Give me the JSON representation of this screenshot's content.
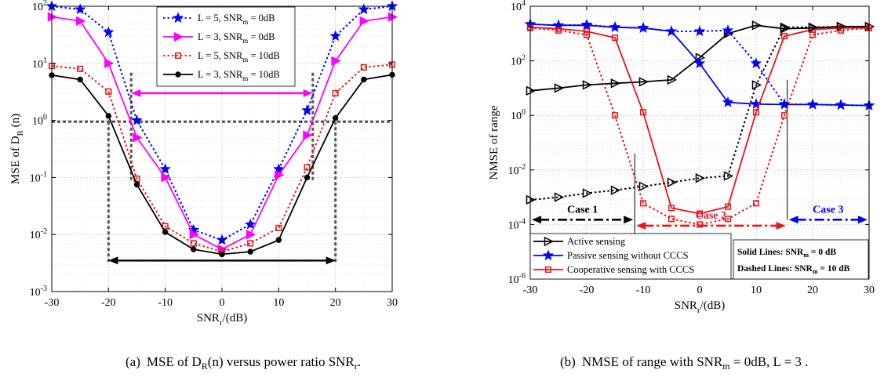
{
  "chart_data": [
    {
      "type": "line",
      "xlabel": "SNR",
      "xlabel_sub": "r",
      "xlabel_unit": "/(dB)",
      "ylabel": "MSE of D",
      "ylabel_sub": "R",
      "ylabel_tail": " (n)",
      "xlim": [
        -30,
        30
      ],
      "ylim": [
        0.001,
        100
      ],
      "yscale": "log",
      "grid": true,
      "legend_position": "top-center",
      "xticks": [
        -30,
        -20,
        -10,
        0,
        10,
        20,
        30
      ],
      "xtick_labels": [
        "-30",
        "-20",
        "-10",
        "0",
        "10",
        "20",
        "30"
      ],
      "yticks": [
        0.001,
        0.01,
        0.1,
        1,
        10,
        100
      ],
      "ytick_labels": [
        {
          "base": "10",
          "exp": "-3"
        },
        {
          "base": "10",
          "exp": "-2"
        },
        {
          "base": "10",
          "exp": "-1"
        },
        {
          "base": "10",
          "exp": "0"
        },
        {
          "base": "10",
          "exp": "1"
        },
        {
          "base": "10",
          "exp": "2"
        }
      ],
      "x": [
        -30,
        -25,
        -20,
        -15,
        -10,
        -5,
        0,
        5,
        10,
        15,
        20,
        25,
        30
      ],
      "series": [
        {
          "name": "L = 5, SNR",
          "name_sub": "m",
          "name_tail": " = 0dB",
          "color": "#0000ff",
          "dash": "dotted",
          "marker": "star",
          "values": [
            100,
            88,
            35,
            1.0,
            0.14,
            0.012,
            0.008,
            0.015,
            0.14,
            1.5,
            30,
            88,
            100
          ]
        },
        {
          "name": "L = 3, SNR",
          "name_sub": "m",
          "name_tail": " = 0dB",
          "color": "#ff00ff",
          "dash": "solid",
          "marker": "triangle-right",
          "values": [
            65,
            55,
            10,
            0.5,
            0.1,
            0.01,
            0.0055,
            0.01,
            0.11,
            0.55,
            11,
            55,
            65
          ]
        },
        {
          "name": "L = 5, SNR",
          "name_sub": "m",
          "name_tail": " = 10dB",
          "color": "#e8141b",
          "dash": "dotted",
          "marker": "square",
          "values": [
            9,
            8,
            3.2,
            0.095,
            0.014,
            0.007,
            0.005,
            0.007,
            0.013,
            0.15,
            3,
            8.5,
            9.5
          ]
        },
        {
          "name": "L = 3, SNR",
          "name_sub": "m",
          "name_tail": " = 10dB",
          "color": "#000000",
          "dash": "solid",
          "marker": "circle",
          "values": [
            6.2,
            5.2,
            1.2,
            0.075,
            0.011,
            0.0055,
            0.0045,
            0.005,
            0.008,
            0.1,
            1.1,
            5.2,
            6.3
          ]
        }
      ],
      "annotations": [
        {
          "kind": "hline",
          "style": "dotted",
          "color": "#555555",
          "y": 0.95,
          "x0": -30,
          "x1": 30
        },
        {
          "kind": "vline",
          "style": "dotted",
          "color": "#555555",
          "x": -20,
          "y0": 0.0033,
          "y1": 1.05
        },
        {
          "kind": "vline",
          "style": "dotted",
          "color": "#555555",
          "x": 20,
          "y0": 0.0033,
          "y1": 1.05
        },
        {
          "kind": "vline",
          "style": "dotted",
          "color": "#555555",
          "x": -16,
          "y0": 0.09,
          "y1": 7
        },
        {
          "kind": "vline",
          "style": "dotted",
          "color": "#555555",
          "x": 16,
          "y0": 0.09,
          "y1": 7
        },
        {
          "kind": "double-arrow",
          "color": "#ff00ff",
          "y": 3,
          "x0": -16,
          "x1": 16
        },
        {
          "kind": "double-arrow",
          "color": "#000000",
          "y": 0.0035,
          "x0": -20,
          "x1": 20
        }
      ]
    },
    {
      "type": "line",
      "xlabel": "SNR",
      "xlabel_sub": "r",
      "xlabel_unit": "/(dB)",
      "ylabel": "NMSE of range",
      "xlim": [
        -30,
        30
      ],
      "ylim": [
        1e-06,
        10000
      ],
      "yscale": "log",
      "grid": true,
      "legend_position": "bottom-left",
      "xticks": [
        -30,
        -20,
        -10,
        0,
        10,
        20,
        30
      ],
      "xtick_labels": [
        "-30",
        "-20",
        "-10",
        "0",
        "10",
        "20",
        "30"
      ],
      "yticks": [
        1e-06,
        0.0001,
        0.01,
        1,
        100,
        10000
      ],
      "ytick_labels": [
        {
          "base": "10",
          "exp": "-6"
        },
        {
          "base": "10",
          "exp": "-4"
        },
        {
          "base": "10",
          "exp": "-2"
        },
        {
          "base": "10",
          "exp": "0"
        },
        {
          "base": "10",
          "exp": "2"
        },
        {
          "base": "10",
          "exp": "4"
        }
      ],
      "x": [
        -30,
        -25,
        -20,
        -15,
        -10,
        -5,
        0,
        5,
        10,
        15,
        20,
        25,
        30
      ],
      "series": [
        {
          "name": "Active sensing",
          "color": "#000000",
          "dash": "solid",
          "marker": "triangle-right",
          "legend": true,
          "values": [
            8,
            10,
            13,
            15,
            17,
            20,
            130,
            1000,
            2000,
            1500,
            1600,
            1800,
            1800
          ]
        },
        {
          "name": "Passive sensing without CCCS",
          "color": "#0000ff",
          "dash": "solid",
          "marker": "star",
          "legend": true,
          "values": [
            2200,
            2000,
            2000,
            1700,
            1600,
            1200,
            80,
            3,
            2.6,
            2.5,
            2.5,
            2.4,
            2.3
          ]
        },
        {
          "name": "Cooperative sensing with CCCS",
          "color": "#e8141b",
          "dash": "solid",
          "marker": "square",
          "legend": true,
          "values": [
            1700,
            1500,
            1200,
            700,
            1.3,
            0.0004,
            0.00025,
            0.00045,
            1.3,
            800,
            1400,
            1600,
            1600
          ]
        },
        {
          "name": "",
          "color": "#000000",
          "dash": "dotted",
          "marker": "triangle-right",
          "legend": false,
          "values": [
            0.0008,
            0.001,
            0.0014,
            0.0018,
            0.0025,
            0.0035,
            0.005,
            0.006,
            13,
            1700,
            1700,
            1800,
            1800
          ]
        },
        {
          "name": "",
          "color": "#0000ff",
          "dash": "dotted",
          "marker": "star",
          "legend": false,
          "values": [
            2200,
            2000,
            2100,
            1700,
            1600,
            1200,
            1200,
            1300,
            80,
            2.6,
            2.5,
            2.4,
            2.3
          ]
        },
        {
          "name": "",
          "color": "#e8141b",
          "dash": "dotted",
          "marker": "square",
          "legend": false,
          "values": [
            1600,
            1300,
            900,
            1,
            0.0006,
            0.00016,
            0.0001,
            0.00016,
            0.0006,
            1,
            900,
            1300,
            1600
          ]
        }
      ],
      "annotations": [
        {
          "kind": "vline",
          "style": "solid",
          "color": "#000000",
          "x": -11.5,
          "y0": 4e-05,
          "y1": 0.04
        },
        {
          "kind": "vline",
          "style": "solid",
          "color": "#000000",
          "x": 15.5,
          "y0": 0.00015,
          "y1": 20
        },
        {
          "kind": "arrow-label",
          "label": "Case 1",
          "color": "#000000",
          "y": 0.00015,
          "x0": -30,
          "x1": -11.5
        },
        {
          "kind": "arrow-label",
          "label": "Case 2",
          "color": "#e8141b",
          "y": 9e-05,
          "x0": -11.5,
          "x1": 15.5
        },
        {
          "kind": "arrow-label",
          "label": "Case 3",
          "color": "#0000ff",
          "y": 0.00015,
          "x0": 15.5,
          "x1": 30
        }
      ],
      "notes": [
        {
          "text": "Solid Lines: SNR",
          "sub": "m",
          "tail": " = 0 dB"
        },
        {
          "text": "Dashed Lines: SNR",
          "sub": "m",
          "tail": " = 10 dB"
        }
      ]
    }
  ],
  "captions": [
    {
      "label": "(a)",
      "text": "MSE of D",
      "sub": "R",
      "tail": "(n) versus power ratio SNR",
      "tail_sub": "r",
      "end": "."
    },
    {
      "label": "(b)",
      "text": "NMSE of range with SNR",
      "sub": "m",
      "tail": " = 0dB, L = 3 ."
    }
  ]
}
